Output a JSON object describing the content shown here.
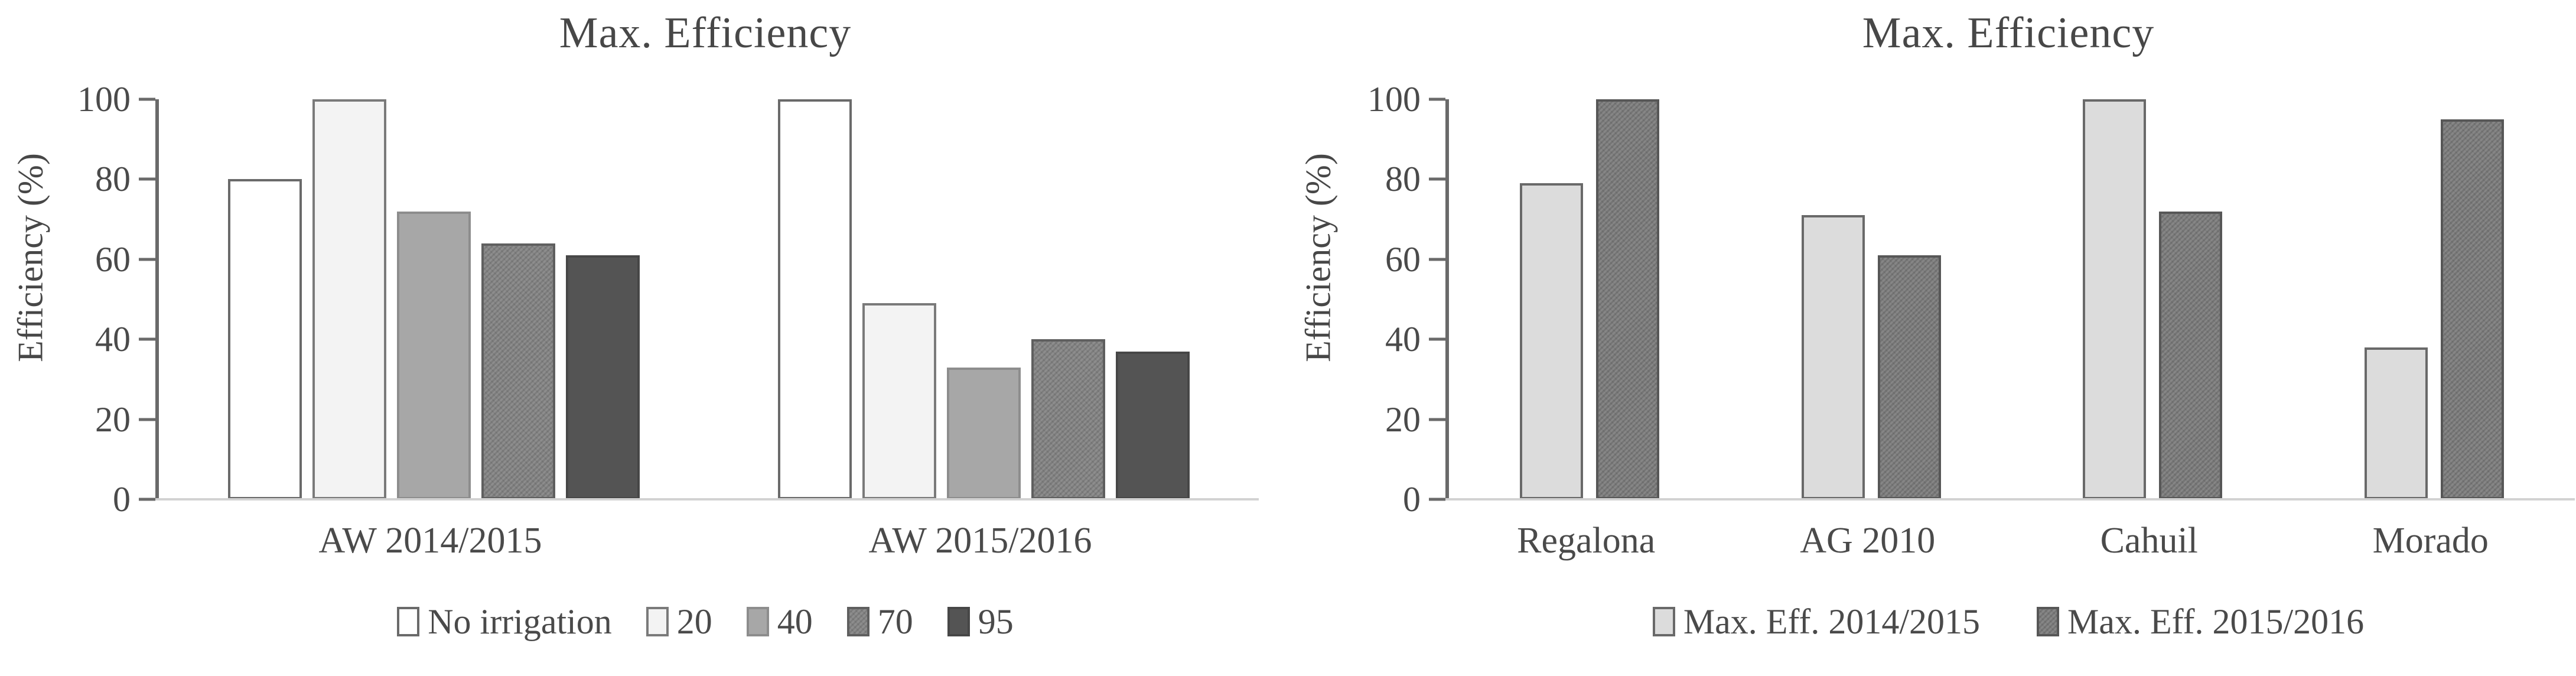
{
  "chart_data": [
    {
      "type": "bar",
      "title": "Max. Efficiency",
      "ylabel": "Efficiency (%)",
      "ylim": [
        0,
        100
      ],
      "yticks": [
        100,
        80,
        60,
        40,
        20,
        0
      ],
      "grid": false,
      "legend_position": "bottom",
      "categories": [
        "AW 2014/2015",
        "AW 2015/2016"
      ],
      "series": [
        {
          "name": "No irrigation",
          "fill": "#ffffff",
          "border": "#6a6a6a",
          "textured": false,
          "values": [
            80,
            100
          ]
        },
        {
          "name": "20",
          "fill": "#f3f3f3",
          "border": "#7a7a7a",
          "textured": false,
          "values": [
            100,
            49
          ]
        },
        {
          "name": "40",
          "fill": "#a7a7a7",
          "border": "#8d8d8d",
          "textured": false,
          "values": [
            72,
            33
          ]
        },
        {
          "name": "70",
          "fill": "#7d7d7d",
          "border": "#5f5f5f",
          "textured": true,
          "values": [
            64,
            40
          ]
        },
        {
          "name": "95",
          "fill": "#545454",
          "border": "#474747",
          "textured": false,
          "values": [
            61,
            37
          ]
        }
      ]
    },
    {
      "type": "bar",
      "title": "Max. Efficiency",
      "ylabel": "Efficiency (%)",
      "ylim": [
        0,
        100
      ],
      "yticks": [
        100,
        80,
        60,
        40,
        20,
        0
      ],
      "grid": false,
      "legend_position": "bottom",
      "categories": [
        "Regalona",
        "AG 2010",
        "Cahuil",
        "Morado"
      ],
      "series": [
        {
          "name": "Max. Eff. 2014/2015",
          "fill": "#dcdcdc",
          "border": "#696969",
          "textured": false,
          "values": [
            79,
            71,
            100,
            38
          ]
        },
        {
          "name": "Max. Eff. 2015/2016",
          "fill": "#757575",
          "border": "#575757",
          "textured": true,
          "values": [
            100,
            61,
            72,
            95
          ]
        }
      ]
    }
  ],
  "colors": {
    "axis": "#6a6a6a",
    "baseline": "#d2d2d2",
    "text": "#4a4a4a"
  }
}
